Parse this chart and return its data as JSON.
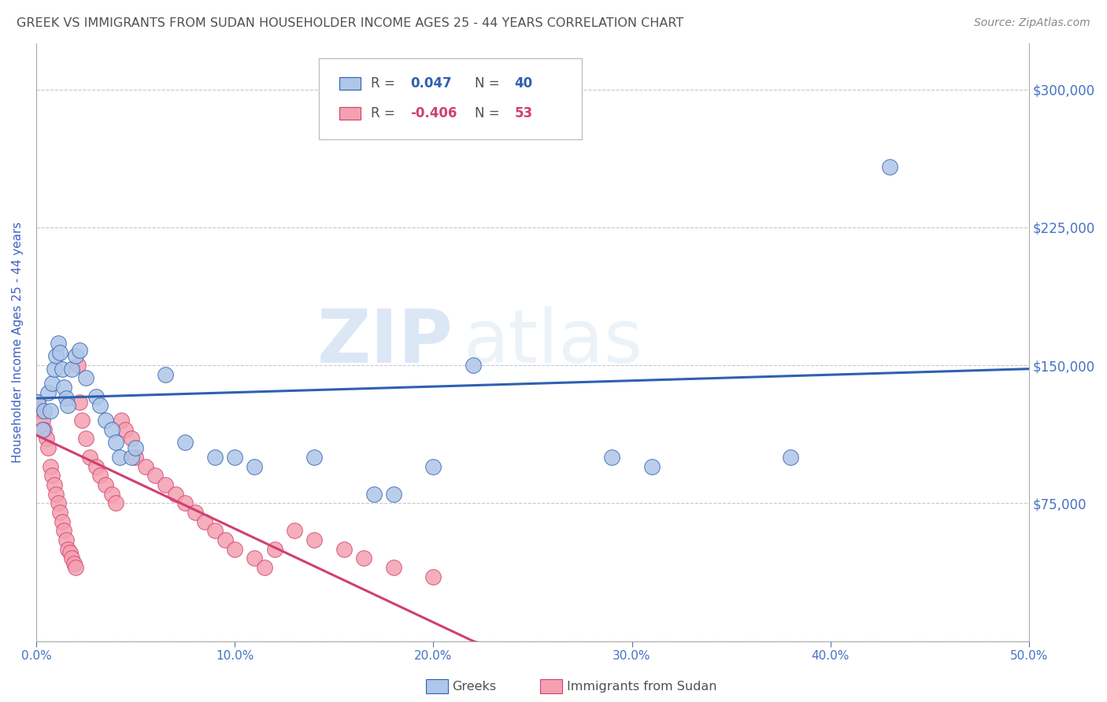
{
  "title": "GREEK VS IMMIGRANTS FROM SUDAN HOUSEHOLDER INCOME AGES 25 - 44 YEARS CORRELATION CHART",
  "source": "Source: ZipAtlas.com",
  "xlabel_ticks": [
    "0.0%",
    "10.0%",
    "20.0%",
    "30.0%",
    "40.0%",
    "50.0%"
  ],
  "xlabel_vals": [
    0.0,
    0.1,
    0.2,
    0.3,
    0.4,
    0.5
  ],
  "ylabel": "Householder Income Ages 25 - 44 years",
  "yticks": [
    0,
    75000,
    150000,
    225000,
    300000
  ],
  "ytick_labels": [
    "",
    "$75,000",
    "$150,000",
    "$225,000",
    "$300,000"
  ],
  "ylim": [
    0,
    325000
  ],
  "xlim": [
    0.0,
    0.5
  ],
  "watermark_zip": "ZIP",
  "watermark_atlas": "atlas",
  "blue_color": "#aec6e8",
  "blue_line_color": "#3060b0",
  "pink_color": "#f4a0b0",
  "pink_line_color": "#d04070",
  "title_color": "#505050",
  "axis_label_color": "#4060c0",
  "tick_label_color": "#4472c4",
  "grid_color": "#c8c8c8",
  "background_color": "#ffffff",
  "greeks_x": [
    0.001,
    0.003,
    0.004,
    0.006,
    0.007,
    0.008,
    0.009,
    0.01,
    0.011,
    0.012,
    0.013,
    0.014,
    0.015,
    0.016,
    0.018,
    0.02,
    0.022,
    0.025,
    0.03,
    0.032,
    0.035,
    0.038,
    0.04,
    0.042,
    0.048,
    0.05,
    0.065,
    0.075,
    0.09,
    0.1,
    0.11,
    0.14,
    0.17,
    0.18,
    0.2,
    0.22,
    0.29,
    0.31,
    0.38,
    0.43
  ],
  "greeks_y": [
    130000,
    115000,
    125000,
    135000,
    125000,
    140000,
    148000,
    155000,
    162000,
    157000,
    148000,
    138000,
    132000,
    128000,
    148000,
    155000,
    158000,
    143000,
    133000,
    128000,
    120000,
    115000,
    108000,
    100000,
    100000,
    105000,
    145000,
    108000,
    100000,
    100000,
    95000,
    100000,
    80000,
    80000,
    95000,
    150000,
    100000,
    95000,
    100000,
    258000
  ],
  "sudan_x": [
    0.001,
    0.002,
    0.003,
    0.004,
    0.005,
    0.006,
    0.007,
    0.008,
    0.009,
    0.01,
    0.011,
    0.012,
    0.013,
    0.014,
    0.015,
    0.016,
    0.017,
    0.018,
    0.019,
    0.02,
    0.021,
    0.022,
    0.023,
    0.025,
    0.027,
    0.03,
    0.032,
    0.035,
    0.038,
    0.04,
    0.043,
    0.045,
    0.048,
    0.05,
    0.055,
    0.06,
    0.065,
    0.07,
    0.075,
    0.08,
    0.085,
    0.09,
    0.095,
    0.1,
    0.11,
    0.115,
    0.12,
    0.13,
    0.14,
    0.155,
    0.165,
    0.18,
    0.2
  ],
  "sudan_y": [
    130000,
    125000,
    120000,
    115000,
    110000,
    105000,
    95000,
    90000,
    85000,
    80000,
    75000,
    70000,
    65000,
    60000,
    55000,
    50000,
    48000,
    45000,
    42000,
    40000,
    150000,
    130000,
    120000,
    110000,
    100000,
    95000,
    90000,
    85000,
    80000,
    75000,
    120000,
    115000,
    110000,
    100000,
    95000,
    90000,
    85000,
    80000,
    75000,
    70000,
    65000,
    60000,
    55000,
    50000,
    45000,
    40000,
    50000,
    60000,
    55000,
    50000,
    45000,
    40000,
    35000
  ],
  "blue_R": "0.047",
  "blue_N": "40",
  "pink_R": "-0.406",
  "pink_N": "53"
}
